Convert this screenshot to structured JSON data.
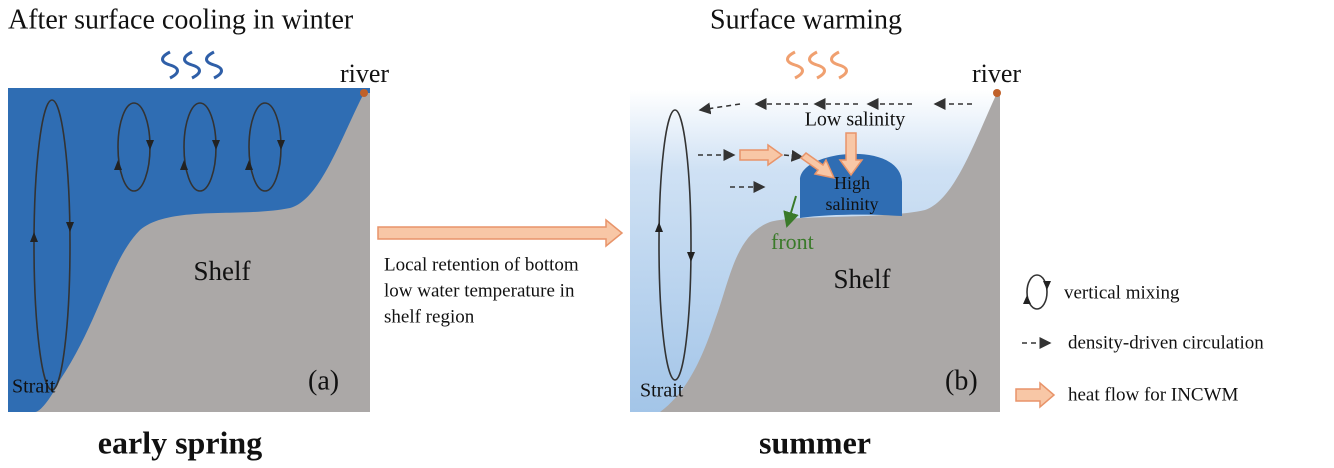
{
  "panel_a": {
    "title": "After surface cooling in winter",
    "river": "river",
    "shelf": "Shelf",
    "strait": "Strait",
    "tag": "(a)",
    "caption": "early spring"
  },
  "middle": {
    "lines": [
      "Local retention of bottom",
      "low water temperature in",
      "shelf region"
    ]
  },
  "panel_b": {
    "title": "Surface warming",
    "river": "river",
    "low_salinity": "Low salinity",
    "high_salinity": [
      "High",
      "salinity"
    ],
    "front": "front",
    "shelf": "Shelf",
    "strait": "Strait",
    "tag": "(b)",
    "caption": "summer"
  },
  "legend": {
    "items": [
      "vertical mixing",
      "density-driven circulation",
      "heat flow for INCWM"
    ]
  }
}
